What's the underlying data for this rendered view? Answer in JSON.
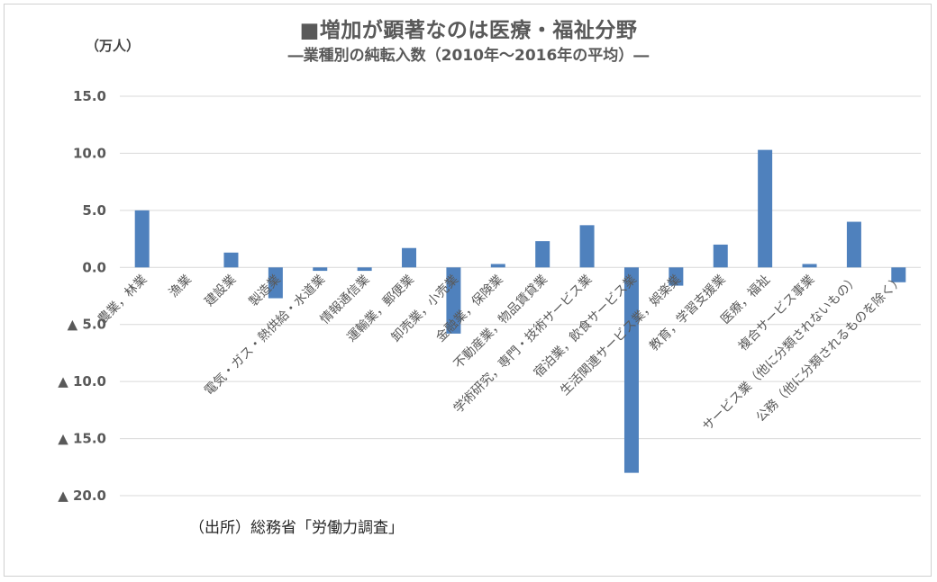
{
  "chart_data": {
    "type": "bar",
    "title": "■増加が顕著なのは医療・福祉分野",
    "subtitle": "―業種別の純転入数（2010年～2016年の平均）―",
    "ylabel": "（万人）",
    "ylim": [
      -20,
      15
    ],
    "yticks": [
      {
        "value": 15,
        "label": "15.0"
      },
      {
        "value": 10,
        "label": "10.0"
      },
      {
        "value": 5,
        "label": "5.0"
      },
      {
        "value": 0,
        "label": "0.0"
      },
      {
        "value": -5,
        "label": "▲ 5.0"
      },
      {
        "value": -10,
        "label": "▲ 10.0"
      },
      {
        "value": -15,
        "label": "▲ 15.0"
      },
      {
        "value": -20,
        "label": "▲ 20.0"
      }
    ],
    "categories": [
      "農業，林業",
      "漁業",
      "建設業",
      "製造業",
      "電気・ガス・熱供給・水道業",
      "情報通信業",
      "運輸業，郵便業",
      "卸売業，小売業",
      "金融業，保険業",
      "不動産業，物品賃貸業",
      "学術研究，専門・技術サービス業",
      "宿泊業，飲食サービス業",
      "生活関連サービス業，娯楽業",
      "教育，学習支援業",
      "医療，福祉",
      "複合サービス事業",
      "サービス業（他に分類されないもの）",
      "公務（他に分類されるものを除く）"
    ],
    "values": [
      5.0,
      0.0,
      1.3,
      -2.7,
      -0.3,
      -0.3,
      1.7,
      -5.8,
      0.3,
      2.3,
      3.7,
      -18.0,
      -1.6,
      2.0,
      10.3,
      0.3,
      4.0,
      -1.3
    ],
    "colors": {
      "bar": "#4f81bd",
      "grid": "#d9d9d9",
      "tick": "#595959",
      "label": "#595959"
    },
    "grid": true,
    "legend": "none"
  },
  "source": "（出所）総務省「労働力調査」"
}
